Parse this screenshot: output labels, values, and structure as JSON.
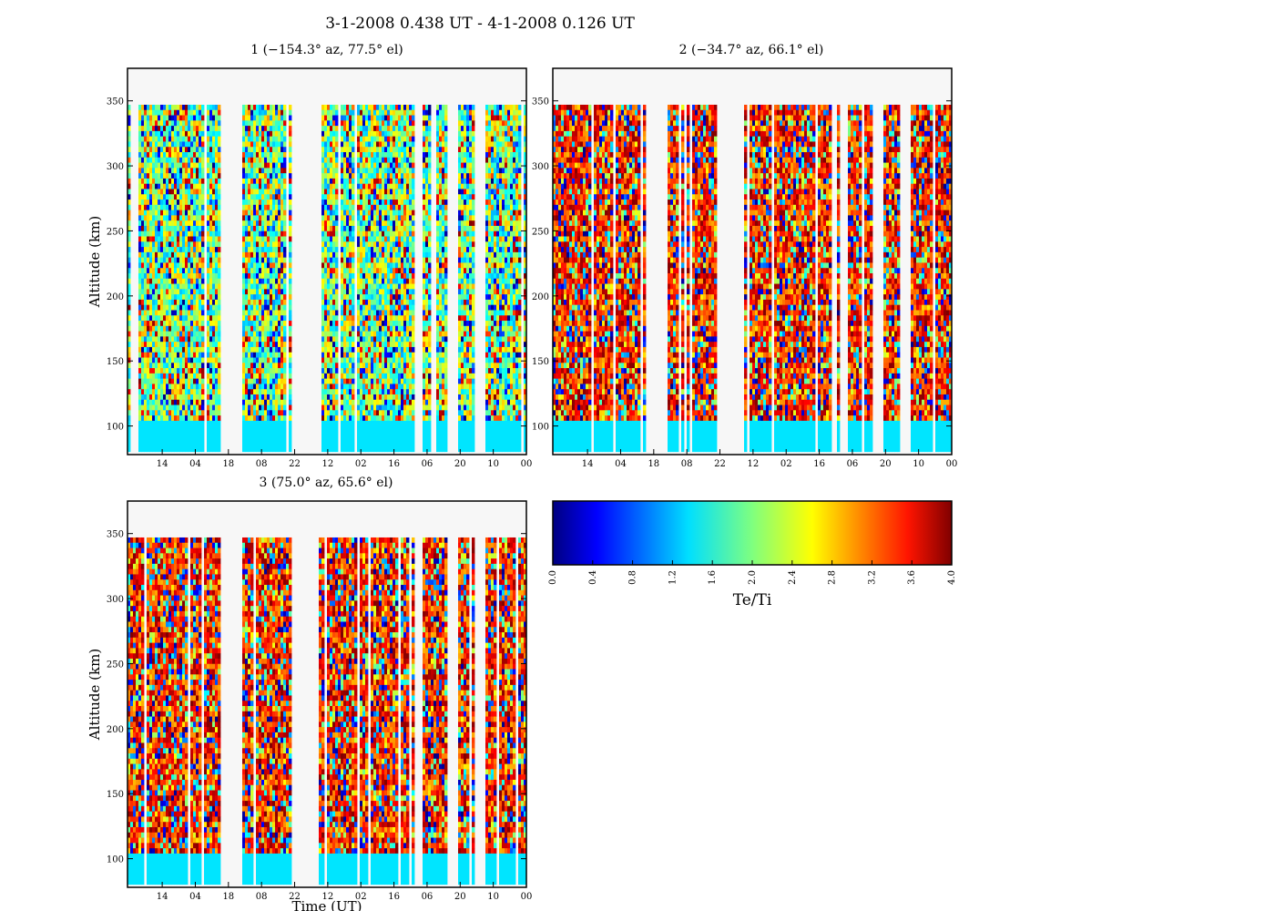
{
  "figure": {
    "title": "3-1-2008 0.438 UT - 4-1-2008 0.126 UT"
  },
  "chart_data": [
    {
      "type": "heatmap",
      "panel": 1,
      "title": "1 (−154.3° az, 77.5° el)",
      "xlabel": "",
      "ylabel": "Altitude (km)",
      "x_tick_labels": [
        "14",
        "04",
        "18",
        "08",
        "22",
        "12",
        "02",
        "16",
        "06",
        "20",
        "10",
        "00"
      ],
      "y_ticks": [
        100,
        150,
        200,
        250,
        300,
        350
      ],
      "ylim": [
        78,
        375
      ],
      "data_altitude_range": [
        80,
        347
      ],
      "colormap": "jet",
      "value_range": [
        0.0,
        4.0
      ],
      "dominant_value_range": [
        1.2,
        2.8
      ],
      "data_gaps_time_fraction": [
        [
          0.235,
          0.285
        ],
        [
          0.408,
          0.443
        ],
        [
          0.448,
          0.48
        ],
        [
          0.72,
          0.74
        ],
        [
          0.802,
          0.83
        ],
        [
          0.868,
          0.898
        ]
      ]
    },
    {
      "type": "heatmap",
      "panel": 2,
      "title": "2 (−34.7° az, 66.1° el)",
      "xlabel": "",
      "ylabel": "",
      "x_tick_labels": [
        "14",
        "04",
        "18",
        "08",
        "22",
        "12",
        "02",
        "16",
        "06",
        "20",
        "10",
        "00"
      ],
      "y_ticks": [
        100,
        150,
        200,
        250,
        300,
        350
      ],
      "ylim": [
        78,
        375
      ],
      "data_altitude_range": [
        80,
        347
      ],
      "colormap": "jet",
      "value_range": [
        0.0,
        4.0
      ],
      "dominant_value_range": [
        2.8,
        4.0
      ],
      "data_gaps_time_fraction": [
        [
          0.235,
          0.285
        ],
        [
          0.408,
          0.443
        ],
        [
          0.448,
          0.48
        ],
        [
          0.72,
          0.74
        ],
        [
          0.802,
          0.83
        ],
        [
          0.868,
          0.898
        ]
      ]
    },
    {
      "type": "heatmap",
      "panel": 3,
      "title": "3 (75.0° az, 65.6° el)",
      "xlabel": "Time (UT)",
      "ylabel": "Altitude (km)",
      "x_tick_labels": [
        "14",
        "04",
        "18",
        "08",
        "22",
        "12",
        "02",
        "16",
        "06",
        "20",
        "10",
        "00"
      ],
      "y_ticks": [
        100,
        150,
        200,
        250,
        300,
        350
      ],
      "ylim": [
        78,
        375
      ],
      "data_altitude_range": [
        80,
        347
      ],
      "colormap": "jet",
      "value_range": [
        0.0,
        4.0
      ],
      "dominant_value_range": [
        2.8,
        4.0
      ],
      "data_gaps_time_fraction": [
        [
          0.235,
          0.285
        ],
        [
          0.408,
          0.443
        ],
        [
          0.448,
          0.48
        ],
        [
          0.72,
          0.74
        ],
        [
          0.802,
          0.83
        ],
        [
          0.868,
          0.898
        ]
      ]
    }
  ],
  "colorbar": {
    "label": "Te/Ti",
    "ticks": [
      "0.0",
      "0.4",
      "0.8",
      "1.2",
      "1.6",
      "2.0",
      "2.4",
      "2.8",
      "3.2",
      "3.6",
      "4.0"
    ],
    "range": [
      0.0,
      4.0
    ],
    "colormap": "jet"
  }
}
